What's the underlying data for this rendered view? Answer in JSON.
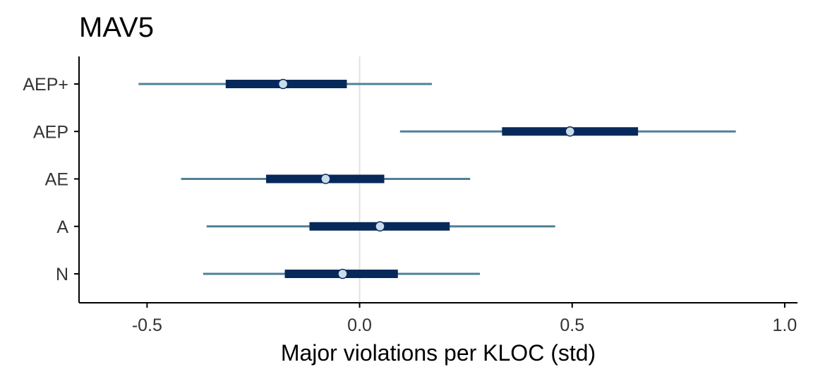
{
  "chart_data": {
    "type": "interval",
    "title": "MAV5",
    "xlabel": "Major violations per KLOC (std)",
    "ylabel": "",
    "xlim": [
      -0.66,
      1.03
    ],
    "xticks": [
      -0.5,
      0.0,
      0.5,
      1.0
    ],
    "xtick_labels": [
      "-0.5",
      "0.0",
      "0.5",
      "1.0"
    ],
    "reference_line": 0.0,
    "categories": [
      "AEP+",
      "AEP",
      "AE",
      "A",
      "N"
    ],
    "series": [
      {
        "label": "AEP+",
        "outer_low": -0.52,
        "inner_low": -0.315,
        "point": -0.18,
        "inner_high": -0.03,
        "outer_high": 0.17
      },
      {
        "label": "AEP",
        "outer_low": 0.095,
        "inner_low": 0.335,
        "point": 0.495,
        "inner_high": 0.655,
        "outer_high": 0.885
      },
      {
        "label": "AE",
        "outer_low": -0.42,
        "inner_low": -0.22,
        "point": -0.08,
        "inner_high": 0.058,
        "outer_high": 0.26
      },
      {
        "label": "A",
        "outer_low": -0.36,
        "inner_low": -0.118,
        "point": 0.048,
        "inner_high": 0.212,
        "outer_high": 0.46
      },
      {
        "label": "N",
        "outer_low": -0.368,
        "inner_low": -0.176,
        "point": -0.04,
        "inner_high": 0.09,
        "outer_high": 0.283
      }
    ],
    "colors": {
      "outer": "#4f8198",
      "inner": "#07295a",
      "point_fill": "#c9dceb",
      "point_stroke": "#07295a",
      "reference": "#e2e2e2",
      "axis": "#000000",
      "tick_text": "#333333"
    }
  }
}
